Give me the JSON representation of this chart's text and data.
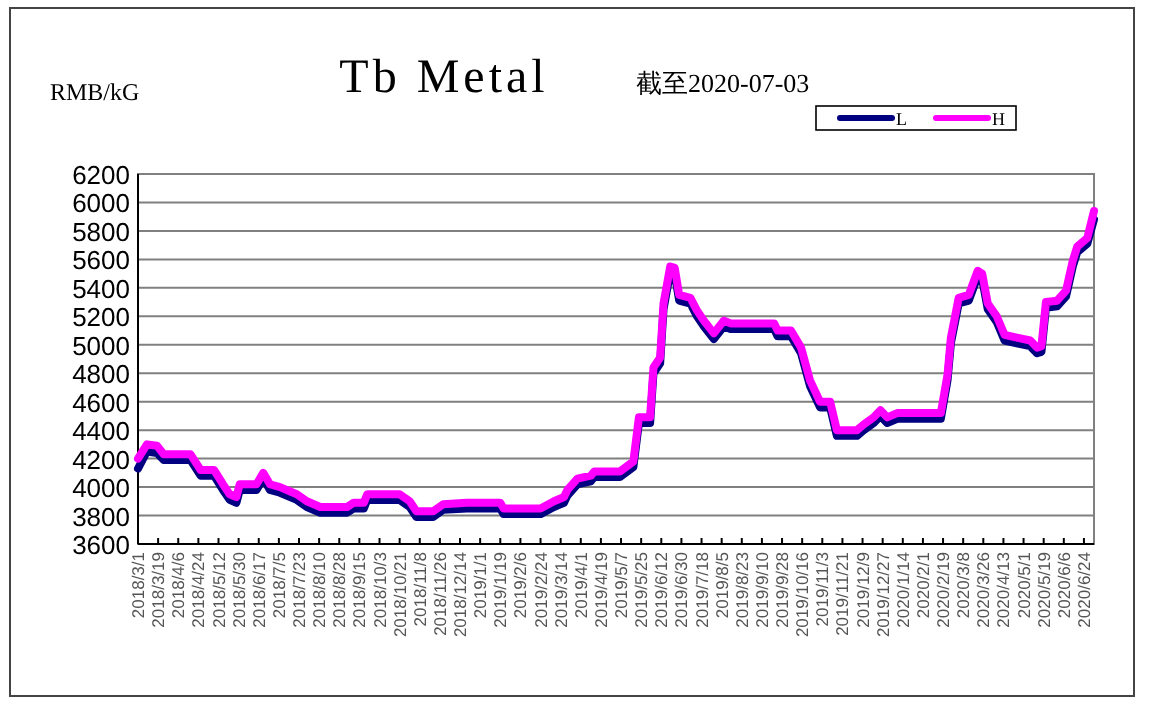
{
  "chart_data": {
    "type": "line",
    "title": "Tb Metal",
    "subtitle": "截至2020-07-03",
    "ylabel": "RMB/kG",
    "x": [
      "2018-03-01",
      "2018-03-09",
      "2018-03-18",
      "2018-03-24",
      "2018-04-17",
      "2018-04-26",
      "2018-05-08",
      "2018-05-16",
      "2018-05-22",
      "2018-05-28",
      "2018-05-31",
      "2018-06-15",
      "2018-06-21",
      "2018-06-27",
      "2018-07-06",
      "2018-07-21",
      "2018-07-30",
      "2018-08-11",
      "2018-09-04",
      "2018-09-10",
      "2018-09-19",
      "2018-09-22",
      "2018-10-21",
      "2018-10-30",
      "2018-11-05",
      "2018-11-20",
      "2018-11-29",
      "2018-12-20",
      "2019-01-19",
      "2019-01-22",
      "2019-02-24",
      "2019-03-08",
      "2019-03-17",
      "2019-03-20",
      "2019-03-29",
      "2019-04-10",
      "2019-04-13",
      "2019-05-06",
      "2019-05-18",
      "2019-05-23",
      "2019-06-02",
      "2019-06-05",
      "2019-06-11",
      "2019-06-14",
      "2019-06-20",
      "2019-06-24",
      "2019-06-28",
      "2019-07-08",
      "2019-07-14",
      "2019-07-20",
      "2019-07-29",
      "2019-08-07",
      "2019-08-13",
      "2019-09-21",
      "2019-09-24",
      "2019-10-06",
      "2019-10-15",
      "2019-10-23",
      "2019-11-01",
      "2019-11-10",
      "2019-11-16",
      "2019-12-04",
      "2019-12-10",
      "2019-12-19",
      "2019-12-25",
      "2019-12-31",
      "2020-01-09",
      "2020-02-17",
      "2020-02-23",
      "2020-02-26",
      "2020-03-04",
      "2020-03-13",
      "2020-03-21",
      "2020-03-25",
      "2020-03-30",
      "2020-04-07",
      "2020-04-14",
      "2020-04-25",
      "2020-05-07",
      "2020-05-13",
      "2020-05-17",
      "2020-05-21",
      "2020-05-31",
      "2020-06-08",
      "2020-06-14",
      "2020-06-18",
      "2020-06-27",
      "2020-07-03"
    ],
    "series": [
      {
        "name": "L",
        "color": "#000080",
        "values": [
          4130,
          4250,
          4240,
          4190,
          4190,
          4080,
          4080,
          3980,
          3910,
          3890,
          3980,
          3980,
          4060,
          3980,
          3960,
          3910,
          3860,
          3820,
          3820,
          3850,
          3850,
          3910,
          3910,
          3860,
          3790,
          3790,
          3840,
          3850,
          3850,
          3810,
          3810,
          3860,
          3890,
          3940,
          4020,
          4040,
          4070,
          4070,
          4140,
          4450,
          4450,
          4800,
          4870,
          5250,
          5510,
          5500,
          5310,
          5290,
          5200,
          5130,
          5040,
          5130,
          5110,
          5110,
          5060,
          5060,
          4940,
          4710,
          4560,
          4560,
          4360,
          4360,
          4400,
          4450,
          4500,
          4450,
          4480,
          4480,
          4750,
          5010,
          5290,
          5310,
          5480,
          5460,
          5250,
          5160,
          5030,
          5010,
          4990,
          4940,
          4950,
          5260,
          5270,
          5340,
          5550,
          5650,
          5710,
          5880
        ]
      },
      {
        "name": "H",
        "color": "#ff00ff",
        "values": [
          4200,
          4300,
          4290,
          4230,
          4230,
          4120,
          4120,
          4020,
          3950,
          3930,
          4020,
          4020,
          4100,
          4020,
          4000,
          3950,
          3900,
          3860,
          3860,
          3890,
          3890,
          3950,
          3950,
          3900,
          3830,
          3830,
          3880,
          3890,
          3890,
          3850,
          3850,
          3900,
          3930,
          3980,
          4060,
          4080,
          4110,
          4110,
          4180,
          4490,
          4490,
          4840,
          4910,
          5290,
          5550,
          5540,
          5350,
          5330,
          5240,
          5170,
          5080,
          5170,
          5150,
          5150,
          5100,
          5100,
          4980,
          4750,
          4600,
          4600,
          4400,
          4400,
          4440,
          4490,
          4540,
          4490,
          4520,
          4520,
          4790,
          5050,
          5330,
          5350,
          5520,
          5500,
          5290,
          5200,
          5070,
          5050,
          5030,
          4980,
          4990,
          5300,
          5310,
          5380,
          5590,
          5690,
          5750,
          5940
        ]
      }
    ],
    "xlim": [
      "2018-03-01",
      "2020-07-03"
    ],
    "xticks": [
      {
        "value": "2018-03-01",
        "label": "2018/3/1"
      },
      {
        "value": "2018-03-19",
        "label": "2018/3/19"
      },
      {
        "value": "2018-04-06",
        "label": "2018/4/6"
      },
      {
        "value": "2018-04-24",
        "label": "2018/4/24"
      },
      {
        "value": "2018-05-12",
        "label": "2018/5/12"
      },
      {
        "value": "2018-05-30",
        "label": "2018/5/30"
      },
      {
        "value": "2018-06-17",
        "label": "2018/6/17"
      },
      {
        "value": "2018-07-05",
        "label": "2018/7/5"
      },
      {
        "value": "2018-07-23",
        "label": "2018/7/23"
      },
      {
        "value": "2018-08-10",
        "label": "2018/8/10"
      },
      {
        "value": "2018-08-28",
        "label": "2018/8/28"
      },
      {
        "value": "2018-09-15",
        "label": "2018/9/15"
      },
      {
        "value": "2018-10-03",
        "label": "2018/10/3"
      },
      {
        "value": "2018-10-21",
        "label": "2018/10/21"
      },
      {
        "value": "2018-11-08",
        "label": "2018/11/8"
      },
      {
        "value": "2018-11-26",
        "label": "2018/11/26"
      },
      {
        "value": "2018-12-14",
        "label": "2018/12/14"
      },
      {
        "value": "2019-01-01",
        "label": "2019/1/1"
      },
      {
        "value": "2019-01-19",
        "label": "2019/1/19"
      },
      {
        "value": "2019-02-06",
        "label": "2019/2/6"
      },
      {
        "value": "2019-02-24",
        "label": "2019/2/24"
      },
      {
        "value": "2019-03-14",
        "label": "2019/3/14"
      },
      {
        "value": "2019-04-01",
        "label": "2019/4/1"
      },
      {
        "value": "2019-04-19",
        "label": "2019/4/19"
      },
      {
        "value": "2019-05-07",
        "label": "2019/5/7"
      },
      {
        "value": "2019-05-25",
        "label": "2019/5/25"
      },
      {
        "value": "2019-06-12",
        "label": "2019/6/12"
      },
      {
        "value": "2019-06-30",
        "label": "2019/6/30"
      },
      {
        "value": "2019-07-18",
        "label": "2019/7/18"
      },
      {
        "value": "2019-08-05",
        "label": "2019/8/5"
      },
      {
        "value": "2019-08-23",
        "label": "2019/8/23"
      },
      {
        "value": "2019-09-10",
        "label": "2019/9/10"
      },
      {
        "value": "2019-09-28",
        "label": "2019/9/28"
      },
      {
        "value": "2019-10-16",
        "label": "2019/10/16"
      },
      {
        "value": "2019-11-03",
        "label": "2019/11/3"
      },
      {
        "value": "2019-11-21",
        "label": "2019/11/21"
      },
      {
        "value": "2019-12-09",
        "label": "2019/12/9"
      },
      {
        "value": "2019-12-27",
        "label": "2019/12/27"
      },
      {
        "value": "2020-01-14",
        "label": "2020/1/14"
      },
      {
        "value": "2020-02-01",
        "label": "2020/2/1"
      },
      {
        "value": "2020-02-19",
        "label": "2020/2/19"
      },
      {
        "value": "2020-03-08",
        "label": "2020/3/8"
      },
      {
        "value": "2020-03-26",
        "label": "2020/3/26"
      },
      {
        "value": "2020-04-13",
        "label": "2020/4/13"
      },
      {
        "value": "2020-05-01",
        "label": "2020/5/1"
      },
      {
        "value": "2020-05-19",
        "label": "2020/5/19"
      },
      {
        "value": "2020-06-06",
        "label": "2020/6/6"
      },
      {
        "value": "2020-06-24",
        "label": "2020/6/24"
      }
    ],
    "ylim": [
      3600,
      6200
    ],
    "yticks": [
      3600,
      3800,
      4000,
      4200,
      4400,
      4600,
      4800,
      5000,
      5200,
      5400,
      5600,
      5800,
      6000,
      6200
    ],
    "grid": "y",
    "legend": "top right"
  }
}
